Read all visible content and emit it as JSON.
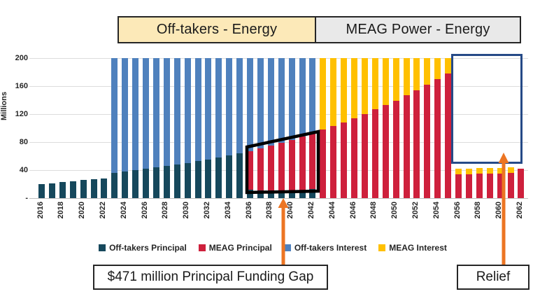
{
  "header": {
    "left_label": "Off-takers - Energy",
    "right_label": "MEAG Power - Energy"
  },
  "y_axis": {
    "title": "Millions",
    "tick_labels": [
      "200",
      "160",
      "120",
      "80",
      "40",
      "-"
    ],
    "tick_values": [
      200,
      160,
      120,
      80,
      40,
      0
    ]
  },
  "legend": [
    {
      "label": "Off-takers Principal",
      "color": "#16485c"
    },
    {
      "label": "MEAG Principal",
      "color": "#ce203c"
    },
    {
      "label": "Off-takers Interest",
      "color": "#4f81bd"
    },
    {
      "label": "MEAG Interest",
      "color": "#ffc000"
    }
  ],
  "annotations": {
    "funding_gap": "$471 million Principal Funding Gap",
    "relief": "Relief"
  },
  "colors": {
    "offtakers_principal": "#16485c",
    "meag_principal": "#ce203c",
    "offtakers_interest": "#4f81bd",
    "meag_interest": "#ffc000",
    "header_left_bg": "#fce9b8",
    "header_right_bg": "#e9e9e9",
    "arrow_orange": "#ec7523",
    "relief_box_border": "#264a87",
    "gap_outline": "#000000"
  },
  "chart_data": {
    "type": "bar",
    "stacked": true,
    "x": [
      2016,
      2017,
      2018,
      2019,
      2020,
      2021,
      2022,
      2023,
      2024,
      2025,
      2026,
      2027,
      2028,
      2029,
      2030,
      2031,
      2032,
      2033,
      2034,
      2035,
      2036,
      2037,
      2038,
      2039,
      2040,
      2041,
      2042,
      2043,
      2044,
      2045,
      2046,
      2047,
      2048,
      2049,
      2050,
      2051,
      2052,
      2053,
      2054,
      2055,
      2056,
      2057,
      2058,
      2059,
      2060,
      2061,
      2062
    ],
    "x_tick_step": 2,
    "ylabel": "Millions",
    "ylim": [
      0,
      200
    ],
    "gridlines": [
      0,
      40,
      80,
      120,
      160,
      200
    ],
    "legend_position": "bottom",
    "series": [
      {
        "name": "Off-takers Principal",
        "color": "#16485c",
        "values": [
          20,
          21,
          23,
          24,
          26,
          27,
          28,
          36,
          38,
          40,
          42,
          44,
          46,
          48,
          50,
          53,
          55,
          58,
          61,
          64,
          12,
          11,
          11,
          10,
          10,
          11,
          13,
          0,
          0,
          0,
          0,
          0,
          0,
          0,
          0,
          0,
          0,
          0,
          0,
          0,
          0,
          0,
          0,
          0,
          0,
          0,
          0
        ]
      },
      {
        "name": "MEAG Principal",
        "color": "#ce203c",
        "values": [
          0,
          0,
          0,
          0,
          0,
          0,
          0,
          0,
          0,
          0,
          0,
          0,
          0,
          0,
          0,
          0,
          0,
          0,
          0,
          0,
          55,
          60,
          64,
          69,
          73,
          77,
          80,
          98,
          103,
          108,
          114,
          120,
          127,
          133,
          139,
          147,
          154,
          162,
          170,
          178,
          34,
          34,
          35,
          35,
          35,
          36,
          42
        ]
      },
      {
        "name": "Off-takers Interest",
        "color": "#4f81bd",
        "values": [
          0,
          0,
          0,
          0,
          0,
          0,
          0,
          164,
          162,
          160,
          158,
          156,
          154,
          152,
          150,
          147,
          145,
          142,
          139,
          136,
          133,
          129,
          125,
          121,
          117,
          112,
          107,
          0,
          0,
          0,
          0,
          0,
          0,
          0,
          0,
          0,
          0,
          0,
          0,
          0,
          0,
          0,
          0,
          0,
          0,
          0,
          0
        ]
      },
      {
        "name": "MEAG Interest",
        "color": "#ffc000",
        "values": [
          0,
          0,
          0,
          0,
          0,
          0,
          0,
          0,
          0,
          0,
          0,
          0,
          0,
          0,
          0,
          0,
          0,
          0,
          0,
          0,
          0,
          0,
          0,
          0,
          0,
          0,
          0,
          102,
          97,
          92,
          86,
          80,
          73,
          67,
          61,
          53,
          46,
          38,
          30,
          22,
          8,
          8,
          8,
          8,
          8,
          8,
          0
        ]
      }
    ],
    "overlays": {
      "funding_gap_polygon_years": [
        2036,
        2042
      ],
      "relief_box_years": [
        2056,
        2062
      ]
    }
  }
}
